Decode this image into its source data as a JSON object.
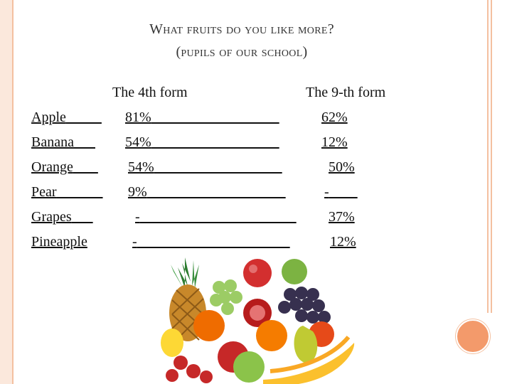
{
  "title_line1": "What fruits do you like more?",
  "title_line2": "(pupils of our school)",
  "col_4th": "The 4th form",
  "col_9th": "The 9-th form",
  "rows": [
    {
      "fruit": "Apple",
      "f4": "81%",
      "f9": "62%"
    },
    {
      "fruit": "Banana",
      "f4": "54%",
      "f9": "12%"
    },
    {
      "fruit": "Orange",
      "f4": "54%",
      "f9": "50%"
    },
    {
      "fruit": "Pear",
      "f4": "9%",
      "f9": "-"
    },
    {
      "fruit": "Grapes",
      "f4": "-",
      "f9": "37%"
    },
    {
      "fruit": "Pineapple",
      "f4": "-",
      "f9": "12%"
    }
  ],
  "colors": {
    "frame": "#f4c0a0",
    "accent": "#f39a6b"
  },
  "image": {
    "icon": "fruit-pile-illustration"
  }
}
